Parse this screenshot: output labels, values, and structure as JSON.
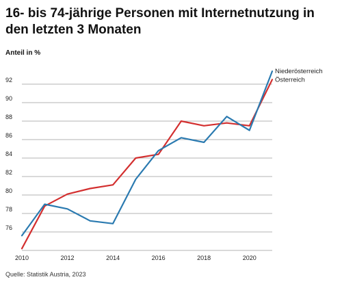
{
  "title": "16- bis 74-jährige Personen mit Internetnutzung in den letzten 3 Monaten",
  "subtitle": "Anteil in %",
  "source": "Quelle: Statistik Austria, 2023",
  "chart_data": {
    "type": "line",
    "title": "16- bis 74-jährige Personen mit Internetnutzung in den letzten 3 Monaten",
    "ylabel": "Anteil in %",
    "xlabel": "",
    "x": [
      2010,
      2011,
      2012,
      2013,
      2014,
      2015,
      2016,
      2017,
      2018,
      2019,
      2020,
      2021
    ],
    "xticks": [
      "2010",
      "2012",
      "2014",
      "2016",
      "2018",
      "2020"
    ],
    "yticks": [
      "76",
      "78",
      "80",
      "82",
      "84",
      "86",
      "88",
      "90",
      "92"
    ],
    "ylim": [
      74,
      94
    ],
    "grid": true,
    "legend_placement": "line-end labels, right",
    "series": [
      {
        "name": "Niederösterreich",
        "color": "#2a7ab0",
        "values": [
          75.6,
          79.0,
          78.5,
          77.2,
          76.9,
          81.7,
          84.8,
          86.2,
          85.7,
          88.5,
          87.0,
          93.4
        ]
      },
      {
        "name": "Österreich",
        "color": "#d32f2f",
        "values": [
          74.2,
          78.8,
          80.1,
          80.7,
          81.1,
          84.0,
          84.4,
          88.0,
          87.5,
          87.8,
          87.5,
          92.5
        ]
      }
    ]
  }
}
